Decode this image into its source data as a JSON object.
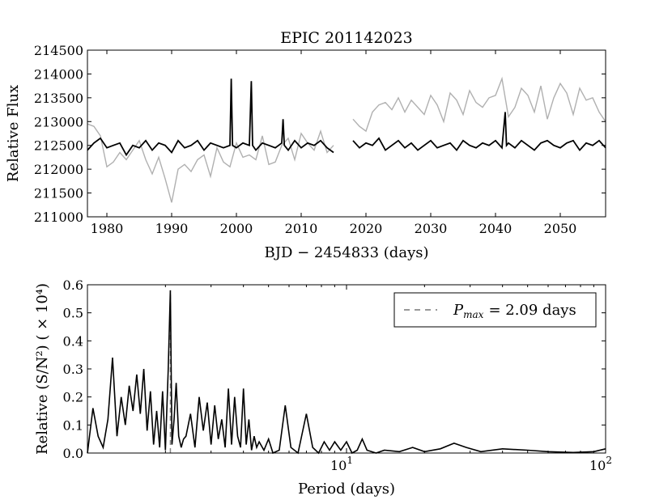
{
  "chart_data": [
    {
      "type": "line",
      "title": "EPIC 201142023",
      "xlabel": "BJD − 2454833 (days)",
      "ylabel": "Relative Flux",
      "xlim": [
        1977,
        2057
      ],
      "ylim": [
        211000,
        214500
      ],
      "xticks": [
        "1980",
        "1990",
        "2000",
        "2010",
        "2020",
        "2030",
        "2040",
        "2050"
      ],
      "yticks": [
        "211000",
        "211500",
        "212000",
        "212500",
        "213000",
        "213500",
        "214000",
        "214500"
      ],
      "grid": false,
      "series": [
        {
          "color": "#b0b0b0",
          "segments": [
            {
              "x": [
                1977,
                1978,
                1979,
                1980,
                1981,
                1982,
                1983,
                1984,
                1985,
                1986,
                1987,
                1988,
                1989,
                1990,
                1991,
                1992,
                1993,
                1994,
                1995,
                1996,
                1997,
                1998,
                1999,
                2000,
                2001,
                2002,
                2003,
                2004,
                2005,
                2006,
                2007,
                2008,
                2009,
                2010,
                2011,
                2012,
                2013,
                2014,
                2015
              ],
              "y": [
                212950,
                212900,
                212700,
                212050,
                212150,
                212350,
                212200,
                212400,
                212600,
                212200,
                211900,
                212250,
                211800,
                211300,
                212000,
                212100,
                211950,
                212200,
                212300,
                211850,
                212450,
                212150,
                212050,
                212550,
                212250,
                212300,
                212200,
                212700,
                212100,
                212150,
                212500,
                212650,
                212200,
                212750,
                212550,
                212400,
                212800,
                212350,
                212500
              ]
            },
            {
              "x": [
                2018,
                2019,
                2020,
                2021,
                2022,
                2023,
                2024,
                2025,
                2026,
                2027,
                2028,
                2029,
                2030,
                2031,
                2032,
                2033,
                2034,
                2035,
                2036,
                2037,
                2038,
                2039,
                2040,
                2041,
                2042,
                2043,
                2044,
                2045,
                2046,
                2047,
                2048,
                2049,
                2050,
                2051,
                2052,
                2053,
                2054,
                2055,
                2056,
                2057
              ],
              "y": [
                213050,
                212900,
                212800,
                213200,
                213350,
                213400,
                213250,
                213500,
                213200,
                213450,
                213300,
                213150,
                213550,
                213350,
                213000,
                213600,
                213450,
                213150,
                213650,
                213400,
                213300,
                213500,
                213550,
                213900,
                213100,
                213300,
                213700,
                213550,
                213200,
                213750,
                213050,
                213500,
                213800,
                213600,
                213150,
                213700,
                213450,
                213500,
                213200,
                213000
              ]
            }
          ]
        },
        {
          "color": "#000000",
          "segments": [
            {
              "x": [
                1977,
                1978,
                1979,
                1980,
                1981,
                1982,
                1983,
                1984,
                1985,
                1986,
                1987,
                1988,
                1989,
                1990,
                1991,
                1992,
                1993,
                1994,
                1995,
                1996,
                1997,
                1998,
                1999,
                1999.2,
                1999.4,
                2000,
                2001,
                2002,
                2002.3,
                2002.5,
                2003,
                2004,
                2005,
                2006,
                2007,
                2007.2,
                2007.4,
                2008,
                2009,
                2010,
                2011,
                2012,
                2013,
                2014,
                2015
              ],
              "y": [
                212400,
                212550,
                212650,
                212450,
                212500,
                212550,
                212300,
                212500,
                212450,
                212600,
                212400,
                212550,
                212500,
                212350,
                212600,
                212450,
                212500,
                212600,
                212400,
                212550,
                212500,
                212450,
                212500,
                213900,
                212500,
                212450,
                212550,
                212500,
                213850,
                212500,
                212400,
                212550,
                212500,
                212450,
                212550,
                213050,
                212500,
                212400,
                212600,
                212450,
                212550,
                212500,
                212600,
                212450,
                212350
              ]
            },
            {
              "x": [
                2018,
                2019,
                2020,
                2021,
                2022,
                2023,
                2024,
                2025,
                2026,
                2027,
                2028,
                2029,
                2030,
                2031,
                2032,
                2033,
                2034,
                2035,
                2036,
                2037,
                2038,
                2039,
                2040,
                2041,
                2041.5,
                2041.7,
                2042,
                2043,
                2044,
                2045,
                2046,
                2047,
                2048,
                2049,
                2050,
                2051,
                2052,
                2053,
                2054,
                2055,
                2056,
                2057
              ],
              "y": [
                212600,
                212450,
                212550,
                212500,
                212650,
                212400,
                212500,
                212600,
                212450,
                212550,
                212400,
                212500,
                212600,
                212450,
                212500,
                212550,
                212400,
                212600,
                212500,
                212450,
                212550,
                212500,
                212600,
                212450,
                213200,
                212500,
                212550,
                212450,
                212600,
                212500,
                212400,
                212550,
                212600,
                212500,
                212450,
                212550,
                212600,
                212400,
                212550,
                212500,
                212600,
                212450
              ]
            }
          ]
        }
      ]
    },
    {
      "type": "line",
      "xlabel": "Period (days)",
      "ylabel": "Relative (S/N²) ( × 10⁴)",
      "xscale": "log",
      "xlim": [
        1,
        100
      ],
      "ylim": [
        0,
        0.6
      ],
      "xticks": [
        {
          "value": 10,
          "base": "10",
          "exp": "1"
        },
        {
          "value": 100,
          "base": "10",
          "exp": "2"
        }
      ],
      "yticks": [
        "0.0",
        "0.1",
        "0.2",
        "0.3",
        "0.4",
        "0.5",
        "0.6"
      ],
      "legend": {
        "position": "top-right",
        "label_base": "P",
        "label_sub": "max",
        "label_rest": "= 2.09 days",
        "style": "dashed"
      },
      "peak": {
        "x": 2.09,
        "y": 0.58,
        "color": "#888888"
      },
      "series": [
        {
          "color": "#000000",
          "x": [
            1.0,
            1.05,
            1.1,
            1.15,
            1.2,
            1.25,
            1.3,
            1.35,
            1.4,
            1.45,
            1.5,
            1.55,
            1.6,
            1.65,
            1.7,
            1.75,
            1.8,
            1.85,
            1.9,
            1.95,
            2.0,
            2.05,
            2.09,
            2.12,
            2.16,
            2.2,
            2.25,
            2.3,
            2.35,
            2.4,
            2.5,
            2.6,
            2.7,
            2.8,
            2.9,
            3.0,
            3.1,
            3.2,
            3.3,
            3.4,
            3.5,
            3.6,
            3.7,
            3.8,
            3.9,
            4.0,
            4.1,
            4.2,
            4.3,
            4.4,
            4.5,
            4.6,
            4.8,
            5.0,
            5.2,
            5.5,
            5.8,
            6.1,
            6.5,
            7.0,
            7.4,
            7.8,
            8.2,
            8.6,
            9.0,
            9.5,
            10.0,
            10.5,
            11.0,
            11.5,
            12.0,
            13.0,
            14.0,
            16.0,
            18.0,
            20.0,
            23.0,
            26.0,
            29.0,
            33.0,
            40.0,
            50.0,
            60.0,
            75.0,
            90.0,
            100.0
          ],
          "y": [
            0.0,
            0.16,
            0.06,
            0.02,
            0.12,
            0.34,
            0.06,
            0.2,
            0.1,
            0.24,
            0.15,
            0.28,
            0.14,
            0.3,
            0.08,
            0.22,
            0.03,
            0.15,
            0.02,
            0.22,
            0.01,
            0.3,
            0.58,
            0.03,
            0.12,
            0.25,
            0.06,
            0.02,
            0.05,
            0.06,
            0.14,
            0.02,
            0.2,
            0.08,
            0.18,
            0.03,
            0.17,
            0.05,
            0.12,
            0.02,
            0.23,
            0.03,
            0.2,
            0.06,
            0.02,
            0.23,
            0.03,
            0.12,
            0.01,
            0.06,
            0.02,
            0.04,
            0.01,
            0.05,
            0.0,
            0.01,
            0.17,
            0.02,
            0.0,
            0.14,
            0.02,
            0.0,
            0.04,
            0.01,
            0.04,
            0.01,
            0.04,
            0.0,
            0.01,
            0.05,
            0.01,
            0.0,
            0.01,
            0.005,
            0.02,
            0.005,
            0.015,
            0.035,
            0.02,
            0.005,
            0.015,
            0.01,
            0.005,
            0.002,
            0.005,
            0.015
          ]
        }
      ]
    }
  ]
}
